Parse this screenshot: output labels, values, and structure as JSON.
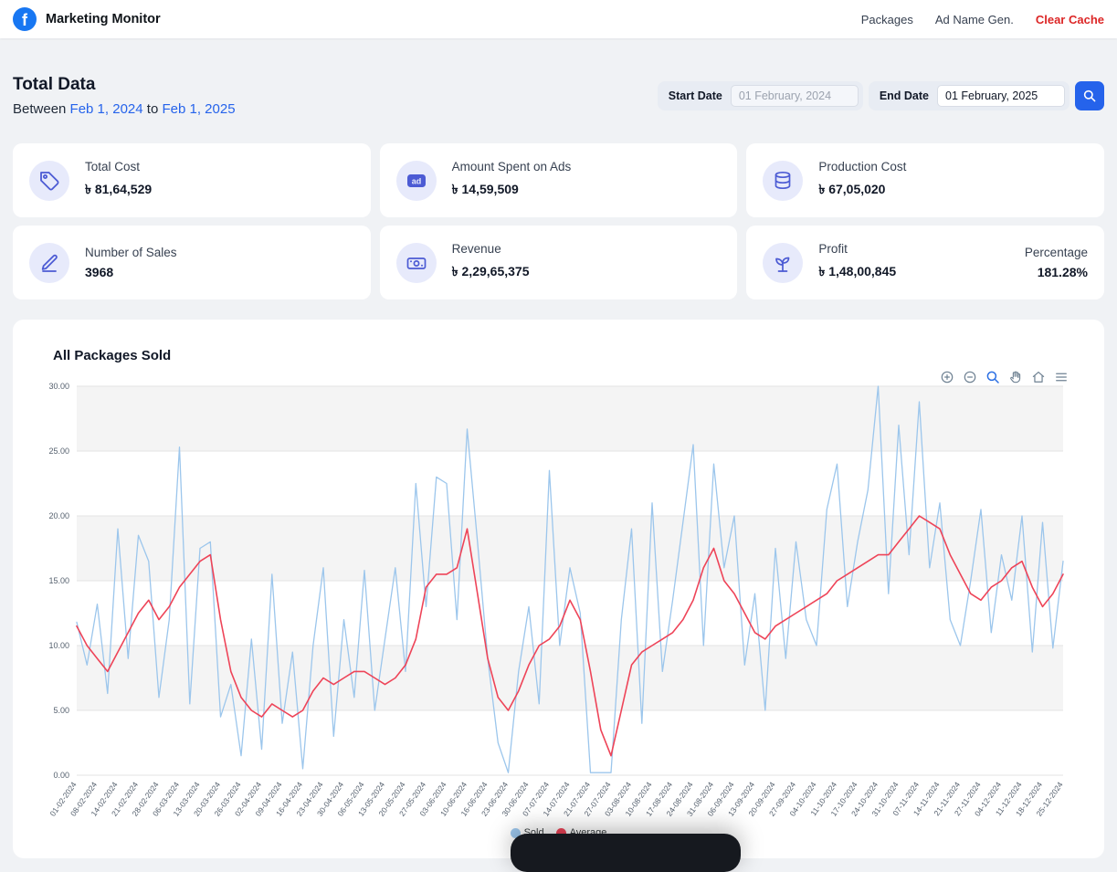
{
  "navbar": {
    "brand": "Marketing Monitor",
    "links": [
      {
        "label": "Packages"
      },
      {
        "label": "Ad Name Gen."
      },
      {
        "label": "Clear Cache"
      }
    ]
  },
  "header": {
    "title": "Total Data",
    "between_prefix": "Between",
    "from_date": "Feb 1, 2024",
    "to_word": "to",
    "to_date": "Feb 1, 2025"
  },
  "filters": {
    "start_label": "Start Date",
    "start_value": "01 February, 2024",
    "end_label": "End Date",
    "end_value": "01 February, 2025"
  },
  "cards": [
    {
      "title": "Total Cost",
      "value": "৳ 81,64,529",
      "icon": "tag-icon"
    },
    {
      "title": "Amount Spent on Ads",
      "value": "৳ 14,59,509",
      "icon": "ad-icon"
    },
    {
      "title": "Production Cost",
      "value": "৳ 67,05,020",
      "icon": "coins-icon"
    },
    {
      "title": "Number of Sales",
      "value": "3968",
      "icon": "pen-icon"
    },
    {
      "title": "Revenue",
      "value": "৳ 2,29,65,375",
      "icon": "money-icon"
    },
    {
      "title": "Profit",
      "value": "৳ 1,48,00,845",
      "icon": "plant-icon",
      "extra_label": "Percentage",
      "extra_value": "181.28%"
    }
  ],
  "chart": {
    "title": "All Packages Sold",
    "legend": [
      {
        "label": "Sold"
      },
      {
        "label": "Average"
      }
    ]
  },
  "colors": {
    "accent_blue": "#2563eb",
    "danger_red": "#dc2626",
    "icon_indigo": "#4c5bd4",
    "sold_line": "#9cc6ec",
    "average_line": "#ee4458"
  },
  "chart_data": {
    "type": "line",
    "title": "All Packages Sold",
    "xlabel": "",
    "ylabel": "",
    "ylim": [
      0,
      30
    ],
    "y_ticks": [
      "0.00",
      "5.00",
      "10.00",
      "15.00",
      "20.00",
      "25.00",
      "30.00"
    ],
    "grid": "horizontal-with-alternating-row-bands",
    "legend_position": "bottom",
    "points_per_label": 2,
    "categories": [
      "01-02-2024",
      "08-02-2024",
      "14-02-2024",
      "21-02-2024",
      "28-02-2024",
      "06-03-2024",
      "13-03-2024",
      "20-03-2024",
      "26-03-2024",
      "02-04-2024",
      "09-04-2024",
      "16-04-2024",
      "23-04-2024",
      "30-04-2024",
      "06-05-2024",
      "13-05-2024",
      "20-05-2024",
      "27-05-2024",
      "03-06-2024",
      "10-06-2024",
      "16-06-2024",
      "23-06-2024",
      "30-06-2024",
      "07-07-2024",
      "14-07-2024",
      "21-07-2024",
      "27-07-2024",
      "03-08-2024",
      "10-08-2024",
      "17-08-2024",
      "24-08-2024",
      "31-08-2024",
      "06-09-2024",
      "13-09-2024",
      "20-09-2024",
      "27-09-2024",
      "04-10-2024",
      "11-10-2024",
      "17-10-2024",
      "24-10-2024",
      "31-10-2024",
      "07-11-2024",
      "14-11-2024",
      "21-11-2024",
      "27-11-2024",
      "04-12-2024",
      "11-12-2024",
      "18-12-2024",
      "25-12-2024"
    ],
    "series": [
      {
        "name": "Sold",
        "color": "#9cc6ec",
        "width": 1.3,
        "values": [
          11.8,
          8.5,
          13.2,
          6.3,
          19.0,
          9.0,
          18.5,
          16.5,
          6.0,
          12.0,
          25.3,
          5.5,
          17.5,
          18.0,
          4.5,
          7.0,
          1.5,
          10.5,
          2.0,
          15.5,
          4.0,
          9.5,
          0.5,
          10.0,
          16.0,
          3.0,
          12.0,
          6.0,
          15.8,
          5.0,
          10.5,
          16.0,
          8.0,
          22.5,
          13.0,
          23.0,
          22.5,
          12.0,
          26.7,
          18.0,
          9.0,
          2.5,
          0.2,
          8.0,
          13.0,
          5.5,
          23.5,
          10.0,
          16.0,
          12.5,
          0.2,
          0.2,
          0.2,
          12.0,
          19.0,
          4.0,
          21.0,
          8.0,
          13.5,
          19.5,
          25.5,
          10.0,
          24.0,
          16.0,
          20.0,
          8.5,
          14.0,
          5.0,
          17.5,
          9.0,
          18.0,
          12.0,
          10.0,
          20.5,
          24.0,
          13.0,
          18.0,
          22.0,
          30.0,
          14.0,
          27.0,
          17.0,
          28.8,
          16.0,
          21.0,
          12.0,
          10.0,
          15.0,
          20.5,
          11.0,
          17.0,
          13.5,
          20.0,
          9.5,
          19.5,
          9.8,
          16.5
        ]
      },
      {
        "name": "Average",
        "color": "#ee4458",
        "width": 1.6,
        "values": [
          11.5,
          10.0,
          9.0,
          8.0,
          9.5,
          11.0,
          12.5,
          13.5,
          12.0,
          13.0,
          14.5,
          15.5,
          16.5,
          17.0,
          12.0,
          8.0,
          6.0,
          5.0,
          4.5,
          5.5,
          5.0,
          4.5,
          5.0,
          6.5,
          7.5,
          7.0,
          7.5,
          8.0,
          8.0,
          7.5,
          7.0,
          7.5,
          8.5,
          10.5,
          14.5,
          15.5,
          15.5,
          16.0,
          19.0,
          14.0,
          9.0,
          6.0,
          5.0,
          6.5,
          8.5,
          10.0,
          10.5,
          11.5,
          13.5,
          12.0,
          8.0,
          3.5,
          1.5,
          5.0,
          8.5,
          9.5,
          10.0,
          10.5,
          11.0,
          12.0,
          13.5,
          16.0,
          17.5,
          15.0,
          14.0,
          12.5,
          11.0,
          10.5,
          11.5,
          12.0,
          12.5,
          13.0,
          13.5,
          14.0,
          15.0,
          15.5,
          16.0,
          16.5,
          17.0,
          17.0,
          18.0,
          19.0,
          20.0,
          19.5,
          19.0,
          17.0,
          15.5,
          14.0,
          13.5,
          14.5,
          15.0,
          16.0,
          16.5,
          14.5,
          13.0,
          14.0,
          15.5
        ]
      }
    ]
  }
}
